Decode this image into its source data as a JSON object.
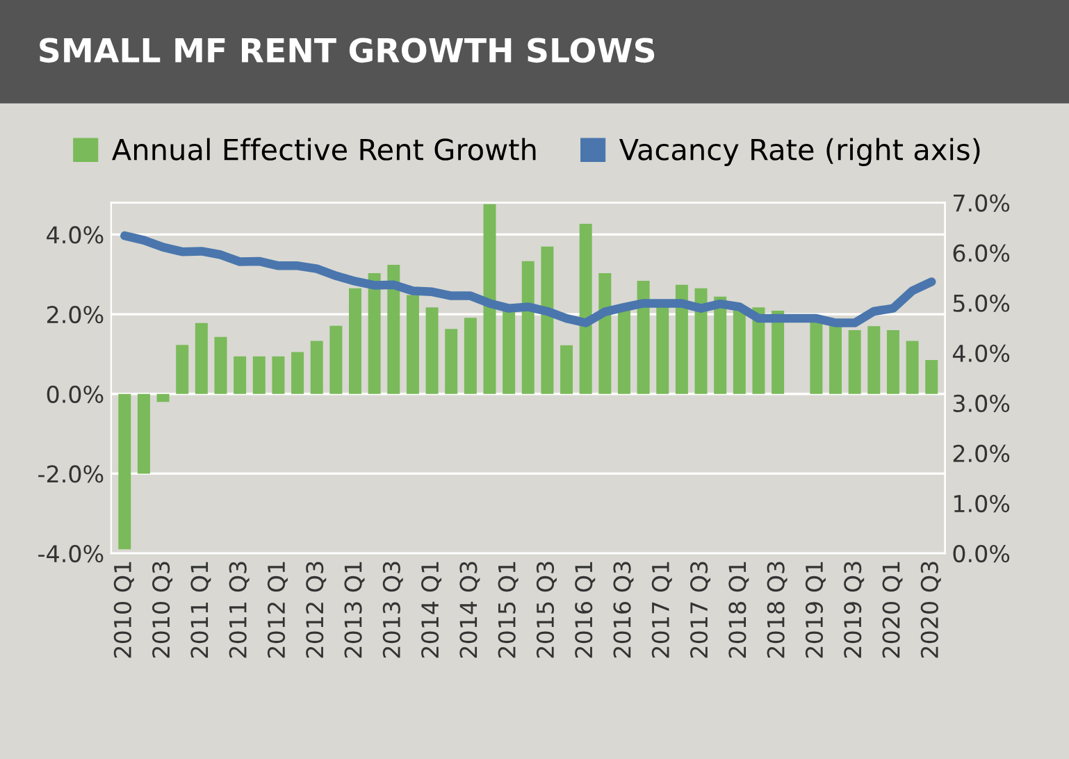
{
  "chart_data": {
    "type": "bar",
    "title": "SMALL MF RENT GROWTH SLOWS",
    "categories": [
      "2010 Q1",
      null,
      "2010 Q3",
      null,
      "2011 Q1",
      null,
      "2011 Q3",
      null,
      "2012 Q1",
      null,
      "2012 Q3",
      null,
      "2013 Q1",
      null,
      "2013 Q3",
      null,
      "2014 Q1",
      null,
      "2014 Q3",
      null,
      "2015 Q1",
      null,
      "2015 Q3",
      null,
      "2016 Q1",
      null,
      "2016 Q3",
      null,
      "2017 Q1",
      null,
      "2017 Q3",
      null,
      "2018 Q1",
      null,
      "2018 Q3",
      null,
      "2019 Q1",
      null,
      "2019 Q3",
      null,
      "2020 Q1",
      null,
      "2020 Q3"
    ],
    "series": [
      {
        "name": "Annual Effective Rent Growth",
        "color": "#7aba5a",
        "values": [
          -3.9,
          -2.0,
          -0.2,
          1.23,
          1.78,
          1.43,
          0.94,
          0.94,
          0.94,
          1.05,
          1.33,
          1.71,
          2.65,
          3.03,
          3.24,
          2.48,
          2.17,
          1.63,
          1.91,
          4.76,
          2.09,
          3.33,
          3.7,
          1.22,
          4.27,
          3.03,
          2.13,
          2.84,
          2.19,
          2.74,
          2.65,
          2.44,
          2.13,
          2.17,
          2.09,
          null,
          1.84,
          1.72,
          1.6,
          1.7,
          1.6,
          1.33,
          0.85
        ]
      },
      {
        "name": "Vacancy Rate (right axis)",
        "type": "line",
        "axis": "y2",
        "color": "#4a76ad",
        "values": [
          6.34,
          6.25,
          6.11,
          6.02,
          6.03,
          5.96,
          5.82,
          5.83,
          5.74,
          5.74,
          5.68,
          5.54,
          5.43,
          5.35,
          5.36,
          5.24,
          5.22,
          5.14,
          5.14,
          4.99,
          4.89,
          4.92,
          4.83,
          4.69,
          4.6,
          4.82,
          4.91,
          4.99,
          4.99,
          4.99,
          4.89,
          4.98,
          4.92,
          4.69,
          4.69,
          4.69,
          4.69,
          4.6,
          4.6,
          4.83,
          4.89,
          5.24,
          5.42
        ]
      }
    ],
    "ylim": [
      -4,
      4.8
    ],
    "yticks": [
      {
        "value": -4,
        "label": "-4.0%"
      },
      {
        "value": -2,
        "label": "-2.0%"
      },
      {
        "value": 0,
        "label": "0.0%"
      },
      {
        "value": 2,
        "label": "2.0%"
      },
      {
        "value": 4,
        "label": "4.0%"
      }
    ],
    "y2lim": [
      0,
      7
    ],
    "y2ticks": [
      {
        "value": 0,
        "label": "0.0%"
      },
      {
        "value": 1,
        "label": "1.0%"
      },
      {
        "value": 2,
        "label": "2.0%"
      },
      {
        "value": 3,
        "label": "3.0%"
      },
      {
        "value": 4,
        "label": "4.0%"
      },
      {
        "value": 5,
        "label": "5.0%"
      },
      {
        "value": 6,
        "label": "6.0%"
      },
      {
        "value": 7,
        "label": "7.0%"
      }
    ],
    "grid": "y",
    "legend": "top",
    "line_style": "solid",
    "marker": "none"
  }
}
